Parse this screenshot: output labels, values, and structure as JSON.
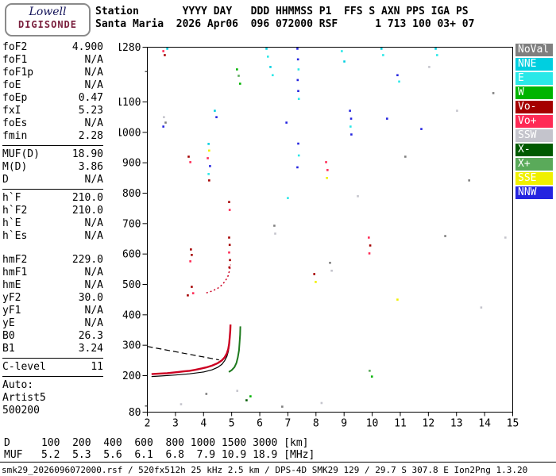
{
  "logo": {
    "line1": "Lowell",
    "line2": "DIGISONDE"
  },
  "header": {
    "row1": "Station       YYYY DAY   DDD HHMMSS P1  FFS S AXN PPS IGA PS",
    "row2": "Santa Maria  2026 Apr06  096 072000 RSF      1 713 100 03+ 07"
  },
  "params": [
    {
      "label": "foF2",
      "value": "4.900"
    },
    {
      "label": "foF1",
      "value": "N/A"
    },
    {
      "label": "foF1p",
      "value": "N/A"
    },
    {
      "label": "foE",
      "value": "N/A"
    },
    {
      "label": "foEp",
      "value": "0.47"
    },
    {
      "label": "fxI",
      "value": "5.23"
    },
    {
      "label": "foEs",
      "value": "N/A"
    },
    {
      "label": "fmin",
      "value": "2.28"
    },
    {
      "sep": true
    },
    {
      "label": "MUF(D)",
      "value": "18.90"
    },
    {
      "label": "M(D)",
      "value": "3.86"
    },
    {
      "label": "D",
      "value": "N/A"
    },
    {
      "sep": true
    },
    {
      "label": "h`F",
      "value": "210.0"
    },
    {
      "label": "h`F2",
      "value": "210.0"
    },
    {
      "label": "h`E",
      "value": "N/A"
    },
    {
      "label": "h`Es",
      "value": "N/A"
    },
    {
      "gap": true
    },
    {
      "label": "hmF2",
      "value": "229.0"
    },
    {
      "label": "hmF1",
      "value": "N/A"
    },
    {
      "label": "hmE",
      "value": "N/A"
    },
    {
      "label": "yF2",
      "value": "30.0"
    },
    {
      "label": "yF1",
      "value": "N/A"
    },
    {
      "label": "yE",
      "value": "N/A"
    },
    {
      "label": "B0",
      "value": "26.3"
    },
    {
      "label": "B1",
      "value": "3.24"
    },
    {
      "sep": true
    },
    {
      "label": "C-level",
      "value": "11"
    },
    {
      "sep": true
    },
    {
      "label": "Auto:",
      "value": ""
    },
    {
      "label": "Artist5",
      "value": ""
    },
    {
      "label": "500200",
      "value": ""
    }
  ],
  "legend": [
    {
      "label": "NoVal",
      "color": "#7f7f7f"
    },
    {
      "label": "NNE",
      "color": "#00cfe0"
    },
    {
      "label": "E",
      "color": "#2ae8e8"
    },
    {
      "label": "W",
      "color": "#00b400"
    },
    {
      "label": "Vo-",
      "color": "#a50000"
    },
    {
      "label": "Vo+",
      "color": "#ff2a55"
    },
    {
      "label": "SSW",
      "color": "#c4c4cc"
    },
    {
      "label": "X-",
      "color": "#005a00"
    },
    {
      "label": "X+",
      "color": "#5aaa5a"
    },
    {
      "label": "SSE",
      "color": "#f0f000"
    },
    {
      "label": "NNW",
      "color": "#2424e0"
    }
  ],
  "bottom": {
    "d_row": {
      "label": "D",
      "values": [
        "100",
        "200",
        "400",
        "600",
        "800",
        "1000",
        "1500",
        "3000"
      ],
      "unit": "[km]"
    },
    "muf_row": {
      "label": "MUF",
      "values": [
        "5.2",
        "5.3",
        "5.6",
        "6.1",
        "6.8",
        "7.9",
        "10.9",
        "18.9"
      ],
      "unit": "[MHz]"
    },
    "status": "smk29_2026096072000.rsf / 520fx512h 25 kHz 2.5 km / DPS-4D SMK29 129 / 29.7 S 307.8 E Ion2Png 1.3.20"
  },
  "chart_data": {
    "type": "scatter",
    "xlabel": "MHz",
    "ylabel": "km",
    "x_range": [
      2,
      15
    ],
    "y_range": [
      80,
      1280
    ],
    "x_ticks": [
      2,
      3,
      4,
      5,
      6,
      7,
      8,
      9,
      10,
      11,
      12,
      13,
      14,
      15
    ],
    "y_ticks": [
      80,
      200,
      300,
      400,
      500,
      600,
      700,
      800,
      900,
      1000,
      1100,
      1280
    ],
    "trace_colors": {
      "o": "#cc0022",
      "x": "#1e7a1e",
      "model": "#000000"
    },
    "o_trace": [
      [
        2.15,
        205
      ],
      [
        2.3,
        206
      ],
      [
        2.5,
        207
      ],
      [
        2.7,
        208
      ],
      [
        2.9,
        210
      ],
      [
        3.1,
        212
      ],
      [
        3.3,
        214
      ],
      [
        3.5,
        216
      ],
      [
        3.7,
        219
      ],
      [
        3.9,
        223
      ],
      [
        4.1,
        227
      ],
      [
        4.3,
        233
      ],
      [
        4.5,
        241
      ],
      [
        4.65,
        250
      ],
      [
        4.75,
        260
      ],
      [
        4.83,
        273
      ],
      [
        4.88,
        288
      ],
      [
        4.91,
        305
      ],
      [
        4.93,
        325
      ],
      [
        4.95,
        348
      ],
      [
        4.96,
        368
      ]
    ],
    "model_trace": [
      [
        2.15,
        197
      ],
      [
        2.5,
        199
      ],
      [
        3.0,
        202
      ],
      [
        3.5,
        206
      ],
      [
        4.0,
        212
      ],
      [
        4.3,
        219
      ],
      [
        4.5,
        227
      ],
      [
        4.65,
        237
      ],
      [
        4.75,
        249
      ],
      [
        4.83,
        263
      ],
      [
        4.88,
        279
      ],
      [
        4.91,
        296
      ],
      [
        4.93,
        316
      ],
      [
        4.95,
        340
      ],
      [
        4.96,
        358
      ]
    ],
    "x_trace": [
      [
        4.9,
        212
      ],
      [
        5.0,
        218
      ],
      [
        5.1,
        228
      ],
      [
        5.17,
        242
      ],
      [
        5.22,
        260
      ],
      [
        5.26,
        283
      ],
      [
        5.28,
        308
      ],
      [
        5.3,
        335
      ],
      [
        5.31,
        362
      ]
    ],
    "dashed_guide": [
      [
        2.0,
        296
      ],
      [
        4.55,
        252
      ]
    ],
    "second_hop": [
      [
        4.1,
        472
      ],
      [
        4.3,
        478
      ],
      [
        4.5,
        487
      ],
      [
        4.65,
        498
      ],
      [
        4.78,
        512
      ],
      [
        4.87,
        528
      ],
      [
        4.93,
        548
      ],
      [
        4.96,
        565
      ]
    ],
    "noise": [
      [
        2.57,
        1267,
        "Vo+"
      ],
      [
        2.71,
        1275,
        "NNE"
      ],
      [
        2.62,
        1254,
        "Vo-"
      ],
      [
        2.59,
        1050,
        "SSW"
      ],
      [
        2.65,
        1032,
        "NoVal"
      ],
      [
        2.57,
        1019,
        "NNW"
      ],
      [
        3.47,
        920,
        "Vo-"
      ],
      [
        3.53,
        902,
        "Vo+"
      ],
      [
        3.55,
        615,
        "Vo-"
      ],
      [
        3.58,
        597,
        "Vo-"
      ],
      [
        3.53,
        576,
        "Vo+"
      ],
      [
        3.58,
        492,
        "Vo-"
      ],
      [
        3.63,
        471,
        "Vo+"
      ],
      [
        3.44,
        464,
        "Vo-"
      ],
      [
        4.18,
        962,
        "NNE"
      ],
      [
        4.2,
        940,
        "SSE"
      ],
      [
        4.15,
        915,
        "Vo+"
      ],
      [
        4.23,
        889,
        "NNW"
      ],
      [
        4.18,
        863,
        "E"
      ],
      [
        4.2,
        842,
        "Vo-"
      ],
      [
        4.4,
        1071,
        "NNE"
      ],
      [
        4.46,
        1050,
        "NNW"
      ],
      [
        4.91,
        771,
        "Vo-"
      ],
      [
        4.93,
        745,
        "Vo+"
      ],
      [
        4.91,
        654,
        "Vo-"
      ],
      [
        4.93,
        630,
        "Vo-"
      ],
      [
        4.91,
        605,
        "Vo+"
      ],
      [
        4.94,
        580,
        "Vo-"
      ],
      [
        4.92,
        556,
        "Vo-"
      ],
      [
        5.19,
        1207,
        "W"
      ],
      [
        5.25,
        1186,
        "X+"
      ],
      [
        5.3,
        1160,
        "W"
      ],
      [
        5.53,
        119,
        "X-"
      ],
      [
        5.67,
        132,
        "W"
      ],
      [
        6.24,
        1275,
        "NNE"
      ],
      [
        6.29,
        1249,
        "E"
      ],
      [
        6.38,
        1215,
        "NNE"
      ],
      [
        6.46,
        1188,
        "E"
      ],
      [
        6.52,
        693,
        "NoVal"
      ],
      [
        6.55,
        667,
        "SSW"
      ],
      [
        6.95,
        1032,
        "NNW"
      ],
      [
        7.0,
        784,
        "E"
      ],
      [
        7.34,
        1275,
        "NNW"
      ],
      [
        7.36,
        1240,
        "NNW"
      ],
      [
        7.38,
        1207,
        "E"
      ],
      [
        7.35,
        1172,
        "NNW"
      ],
      [
        7.37,
        1136,
        "NNW"
      ],
      [
        7.39,
        1110,
        "E"
      ],
      [
        7.37,
        963,
        "NNW"
      ],
      [
        7.39,
        924,
        "E"
      ],
      [
        7.34,
        885,
        "NNW"
      ],
      [
        7.94,
        534,
        "Vo-"
      ],
      [
        7.99,
        508,
        "SSE"
      ],
      [
        8.36,
        902,
        "Vo+"
      ],
      [
        8.41,
        876,
        "Vo+"
      ],
      [
        8.39,
        850,
        "SSE"
      ],
      [
        8.5,
        571,
        "NoVal"
      ],
      [
        8.56,
        545,
        "SSW"
      ],
      [
        8.92,
        1267,
        "E"
      ],
      [
        9.01,
        1233,
        "NNE"
      ],
      [
        9.21,
        1071,
        "NNW"
      ],
      [
        9.25,
        1045,
        "NNW"
      ],
      [
        9.23,
        1019,
        "E"
      ],
      [
        9.26,
        993,
        "NNW"
      ],
      [
        9.49,
        790,
        "SSW"
      ],
      [
        9.88,
        654,
        "Vo+"
      ],
      [
        9.93,
        628,
        "Vo-"
      ],
      [
        9.9,
        602,
        "Vo+"
      ],
      [
        9.91,
        216,
        "X+"
      ],
      [
        9.99,
        197,
        "W"
      ],
      [
        10.33,
        1275,
        "NNE"
      ],
      [
        10.39,
        1254,
        "E"
      ],
      [
        10.53,
        1045,
        "NNW"
      ],
      [
        10.9,
        1188,
        "NNW"
      ],
      [
        10.96,
        1167,
        "E"
      ],
      [
        10.9,
        450,
        "SSE"
      ],
      [
        11.18,
        920,
        "NoVal"
      ],
      [
        11.75,
        1011,
        "NNW"
      ],
      [
        12.03,
        1215,
        "SSW"
      ],
      [
        12.26,
        1275,
        "NNE"
      ],
      [
        12.31,
        1254,
        "E"
      ],
      [
        12.6,
        659,
        "NoVal"
      ],
      [
        13.02,
        1071,
        "SSW"
      ],
      [
        13.45,
        842,
        "NoVal"
      ],
      [
        13.88,
        424,
        "SSW"
      ],
      [
        14.31,
        1129,
        "NoVal"
      ],
      [
        14.74,
        654,
        "SSW"
      ],
      [
        3.2,
        106,
        "SSW"
      ],
      [
        6.8,
        98,
        "NoVal"
      ],
      [
        8.2,
        110,
        "SSW"
      ],
      [
        5.2,
        150,
        "SSW"
      ],
      [
        4.1,
        140,
        "NoVal"
      ]
    ]
  }
}
